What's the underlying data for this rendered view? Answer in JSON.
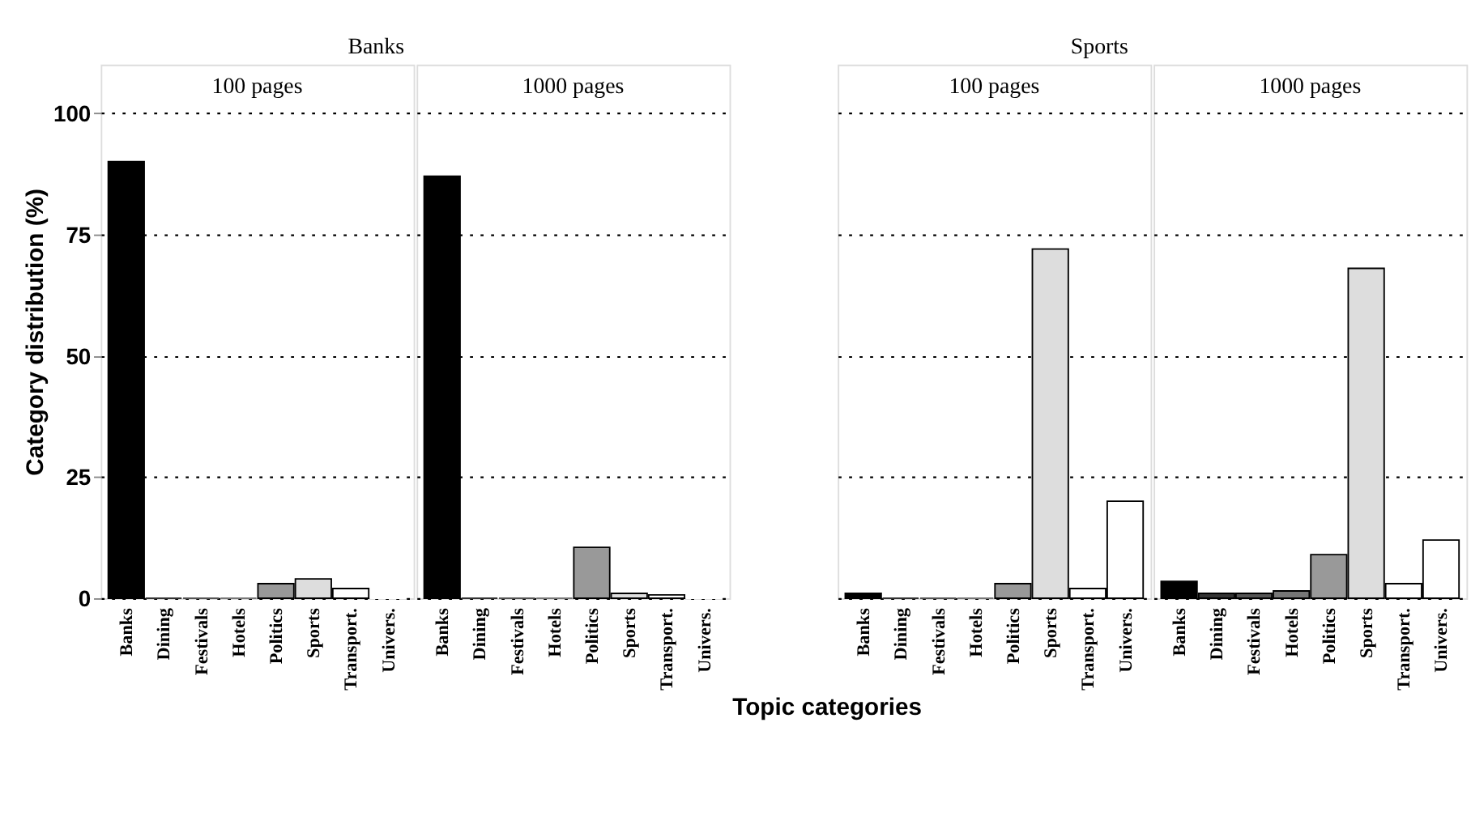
{
  "chart_data": [
    {
      "type": "bar",
      "title": "Banks",
      "subtitle": "100 pages",
      "ylabel": "Category distribution (%)",
      "categories": [
        "Banks",
        "Dining",
        "Festivals",
        "Hotels",
        "Politics",
        "Sports",
        "Transport.",
        "Univers."
      ],
      "values": [
        90,
        0,
        0,
        0,
        3,
        4,
        2,
        0
      ],
      "colors": [
        "#000000",
        "#333333",
        "#555555",
        "#777777",
        "#999999",
        "#dddddd",
        "#ffffff",
        "#ffffff"
      ],
      "ylim": [
        0,
        110
      ],
      "yticks": [
        0,
        25,
        50,
        75,
        100
      ],
      "grid": "y"
    },
    {
      "type": "bar",
      "subtitle": "1000 pages",
      "categories": [
        "Banks",
        "Dining",
        "Festivals",
        "Hotels",
        "Politics",
        "Sports",
        "Transport.",
        "Univers."
      ],
      "values": [
        87,
        0,
        0,
        0,
        10.5,
        1,
        0.7,
        0
      ],
      "colors": [
        "#000000",
        "#333333",
        "#555555",
        "#777777",
        "#999999",
        "#dddddd",
        "#ffffff",
        "#ffffff"
      ],
      "ylim": [
        0,
        110
      ],
      "yticks": [
        0,
        25,
        50,
        75,
        100
      ],
      "grid": "y",
      "tick_labels": "x"
    },
    {
      "type": "bar",
      "title": "Sports",
      "subtitle": "100 pages",
      "xlabel": "Topic categories",
      "categories": [
        "Banks",
        "Dining",
        "Festivals",
        "Hotels",
        "Politics",
        "Sports",
        "Transport.",
        "Univers."
      ],
      "values": [
        1,
        0,
        0,
        0,
        3,
        72,
        2,
        20
      ],
      "colors": [
        "#000000",
        "#333333",
        "#555555",
        "#777777",
        "#999999",
        "#dddddd",
        "#ffffff",
        "#ffffff"
      ],
      "ylim": [
        0,
        110
      ],
      "yticks": [
        0,
        25,
        50,
        75,
        100
      ],
      "grid": "y",
      "tick_labels": "x"
    },
    {
      "type": "bar",
      "subtitle": "1000 pages",
      "categories": [
        "Banks",
        "Dining",
        "Festivals",
        "Hotels",
        "Politics",
        "Sports",
        "Transport.",
        "Univers."
      ],
      "values": [
        3.5,
        1,
        1,
        1.5,
        9,
        68,
        3,
        12
      ],
      "colors": [
        "#000000",
        "#333333",
        "#555555",
        "#777777",
        "#999999",
        "#dddddd",
        "#ffffff",
        "#ffffff"
      ],
      "ylim": [
        0,
        110
      ],
      "yticks": [
        0,
        25,
        50,
        75,
        100
      ],
      "grid": "y",
      "tick_labels": "x"
    }
  ]
}
